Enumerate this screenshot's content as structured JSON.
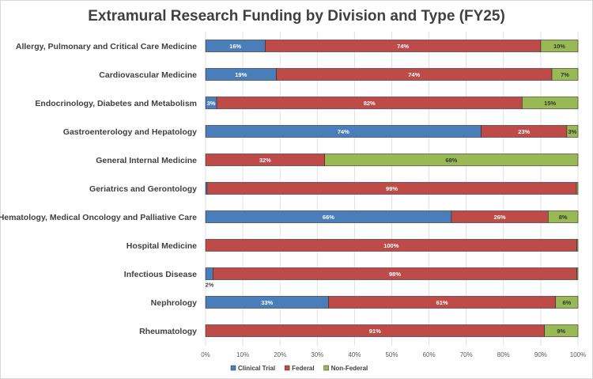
{
  "chart_data": {
    "type": "bar",
    "orientation": "horizontal",
    "stacked": "100%",
    "title": "Extramural Research Funding by Division and Type (FY25)",
    "xlim": [
      0,
      100
    ],
    "x_ticks": [
      "0%",
      "10%",
      "20%",
      "30%",
      "40%",
      "50%",
      "60%",
      "70%",
      "80%",
      "90%",
      "100%"
    ],
    "grid": true,
    "legend_position": "bottom",
    "categories": [
      "Allergy, Pulmonary and Critical Care Medicine",
      "Cardiovascular Medicine",
      "Endocrinology, Diabetes and Metabolism",
      "Gastroenterology and Hepatology",
      "General Internal Medicine",
      "Geriatrics and Gerontology",
      "Hematology, Medical Oncology and Palliative Care",
      "Hospital Medicine",
      "Infectious Disease",
      "Nephrology",
      "Rheumatology"
    ],
    "series": [
      {
        "name": "Clinical Trial",
        "color": "#4a7ebb",
        "values": [
          16,
          19,
          3,
          74,
          0,
          0.4,
          66,
          0,
          2,
          33,
          0
        ],
        "labels": [
          "16%",
          "19%",
          "3%",
          "74%",
          null,
          null,
          "66%",
          null,
          "2%",
          "33%",
          null
        ]
      },
      {
        "name": "Federal",
        "color": "#be4b48",
        "values": [
          74,
          74,
          82,
          23,
          32,
          99.2,
          26,
          99.7,
          97.7,
          61,
          91
        ],
        "labels": [
          "74%",
          "74%",
          "82%",
          "23%",
          "32%",
          "99%",
          "26%",
          "100%",
          "98%",
          "61%",
          "91%"
        ]
      },
      {
        "name": "Non-Federal",
        "color": "#98b954",
        "values": [
          10,
          7,
          15,
          3,
          68,
          0.4,
          8,
          0.3,
          0.3,
          6,
          9
        ],
        "labels": [
          "10%",
          "7%",
          "15%",
          "3%",
          "68%",
          null,
          "8%",
          null,
          null,
          "6%",
          "9%"
        ]
      }
    ]
  }
}
